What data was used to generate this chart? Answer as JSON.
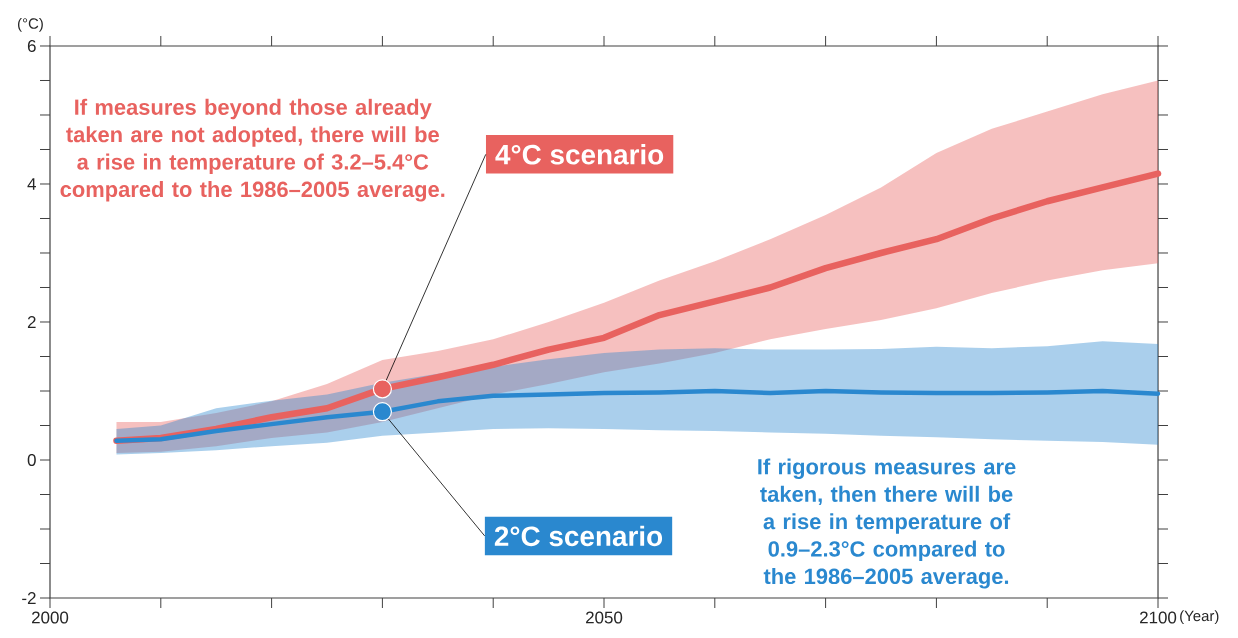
{
  "chart_data": {
    "type": "line",
    "xlabel": "(Year)",
    "ylabel": "(°C)",
    "xlim": [
      2000,
      2100
    ],
    "ylim": [
      -2,
      6
    ],
    "xticks": [
      2000,
      {
        "value": 2010,
        "label": null
      },
      {
        "value": 2020,
        "label": null
      },
      {
        "value": 2030,
        "label": null
      },
      {
        "value": 2040,
        "label": null
      },
      2050,
      {
        "value": 2060,
        "label": null
      },
      {
        "value": 2070,
        "label": null
      },
      {
        "value": 2080,
        "label": null
      },
      {
        "value": 2090,
        "label": null
      },
      2100
    ],
    "yticks": [
      -2,
      {
        "value": -1.5,
        "label": null
      },
      {
        "value": -1,
        "label": null
      },
      {
        "value": -0.5,
        "label": null
      },
      0,
      {
        "value": 0.5,
        "label": null
      },
      {
        "value": 1,
        "label": null
      },
      {
        "value": 1.5,
        "label": null
      },
      2,
      {
        "value": 2.5,
        "label": null
      },
      {
        "value": 3,
        "label": null
      },
      {
        "value": 3.5,
        "label": null
      },
      4,
      {
        "value": 4.5,
        "label": null
      },
      {
        "value": 5,
        "label": null
      },
      {
        "value": 5.5,
        "label": null
      },
      6
    ],
    "x": [
      2006,
      2010,
      2015,
      2020,
      2025,
      2030,
      2035,
      2040,
      2045,
      2050,
      2055,
      2060,
      2065,
      2070,
      2075,
      2080,
      2085,
      2090,
      2095,
      2100
    ],
    "series": [
      {
        "color": "#e8625f",
        "values": [
          0.28,
          0.32,
          0.45,
          0.62,
          0.75,
          1.03,
          1.2,
          1.38,
          1.6,
          1.77,
          2.1,
          2.3,
          2.5,
          2.78,
          3.0,
          3.2,
          3.5,
          3.75,
          3.95,
          4.15
        ],
        "upper": [
          0.55,
          0.55,
          0.68,
          0.85,
          1.1,
          1.45,
          1.58,
          1.75,
          2.0,
          2.28,
          2.6,
          2.88,
          3.2,
          3.55,
          3.95,
          4.45,
          4.8,
          5.05,
          5.3,
          5.5
        ],
        "lower": [
          0.1,
          0.12,
          0.2,
          0.32,
          0.4,
          0.55,
          0.75,
          0.95,
          1.1,
          1.27,
          1.4,
          1.55,
          1.75,
          1.9,
          2.03,
          2.2,
          2.42,
          2.6,
          2.75,
          2.85
        ]
      },
      {
        "color": "#2a88cf",
        "values": [
          0.28,
          0.3,
          0.42,
          0.52,
          0.62,
          0.7,
          0.85,
          0.93,
          0.95,
          0.97,
          0.98,
          1.0,
          0.97,
          1.0,
          0.98,
          0.97,
          0.97,
          0.98,
          1.0,
          0.96
        ],
        "upper": [
          0.45,
          0.5,
          0.75,
          0.86,
          0.95,
          1.12,
          1.25,
          1.35,
          1.46,
          1.55,
          1.6,
          1.62,
          1.6,
          1.6,
          1.61,
          1.64,
          1.62,
          1.65,
          1.72,
          1.68
        ],
        "lower": [
          0.08,
          0.1,
          0.14,
          0.2,
          0.25,
          0.35,
          0.4,
          0.45,
          0.46,
          0.45,
          0.43,
          0.42,
          0.4,
          0.38,
          0.35,
          0.33,
          0.3,
          0.28,
          0.26,
          0.22
        ]
      }
    ],
    "annotations": [
      {
        "text": "4°C scenario",
        "x": 2030,
        "y": 1.03
      },
      {
        "text": "2°C scenario",
        "x": 2030,
        "y": 0.7
      },
      "If measures beyond those already taken are not adopted, there will be a rise in temperature of 3.2–5.4°C compared to the 1986–2005 average.",
      "If rigorous measures are taken, then there will be a rise in temperature of 0.9–2.3°C compared to the 1986–2005 average."
    ]
  }
}
